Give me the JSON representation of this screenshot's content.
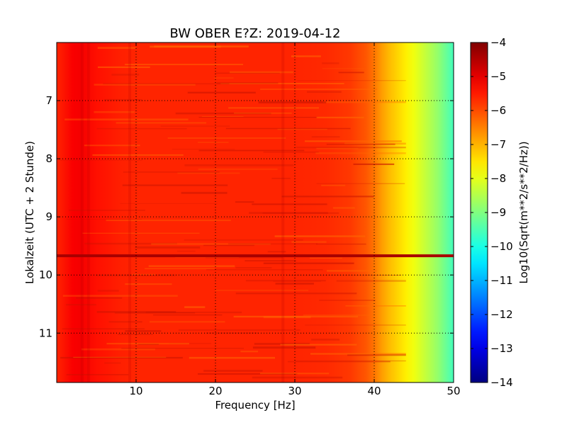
{
  "chart_data": {
    "type": "heatmap",
    "title": "BW OBER E?Z: 2019-04-12",
    "xlabel": "Frequency [Hz]",
    "ylabel": "Lokalzeit (UTC + 2 Stunde)",
    "xlim": [
      0,
      50
    ],
    "ylim": [
      11.85,
      6.0
    ],
    "x_ticks": [
      10,
      20,
      30,
      40,
      50
    ],
    "y_ticks": [
      7,
      8,
      9,
      10,
      11
    ],
    "grid": true,
    "colorbar": {
      "label": "Log10(Sqrt(m**2/s**2/Hz))",
      "colormap": "jet",
      "range": [
        -14,
        -4
      ],
      "ticks": [
        -4,
        -5,
        -6,
        -7,
        -8,
        -9,
        -10,
        -11,
        -12,
        -13,
        -14
      ]
    },
    "spectrum_profile": {
      "frequency_hz": [
        0,
        2,
        3,
        5,
        8,
        10,
        15,
        20,
        25,
        30,
        34,
        37,
        39,
        40,
        41,
        42,
        43,
        44,
        45,
        46,
        47,
        48,
        49,
        50
      ],
      "log10_amplitude": [
        -5.6,
        -5.2,
        -5.15,
        -5.4,
        -5.55,
        -5.6,
        -5.6,
        -5.6,
        -5.6,
        -5.6,
        -5.65,
        -5.8,
        -6.1,
        -6.4,
        -6.8,
        -7.1,
        -7.35,
        -7.6,
        -7.9,
        -8.2,
        -8.5,
        -8.8,
        -9.2,
        -9.6
      ]
    },
    "strong_band": {
      "time_hours": 9.67,
      "log10_amplitude": -4.6
    }
  }
}
